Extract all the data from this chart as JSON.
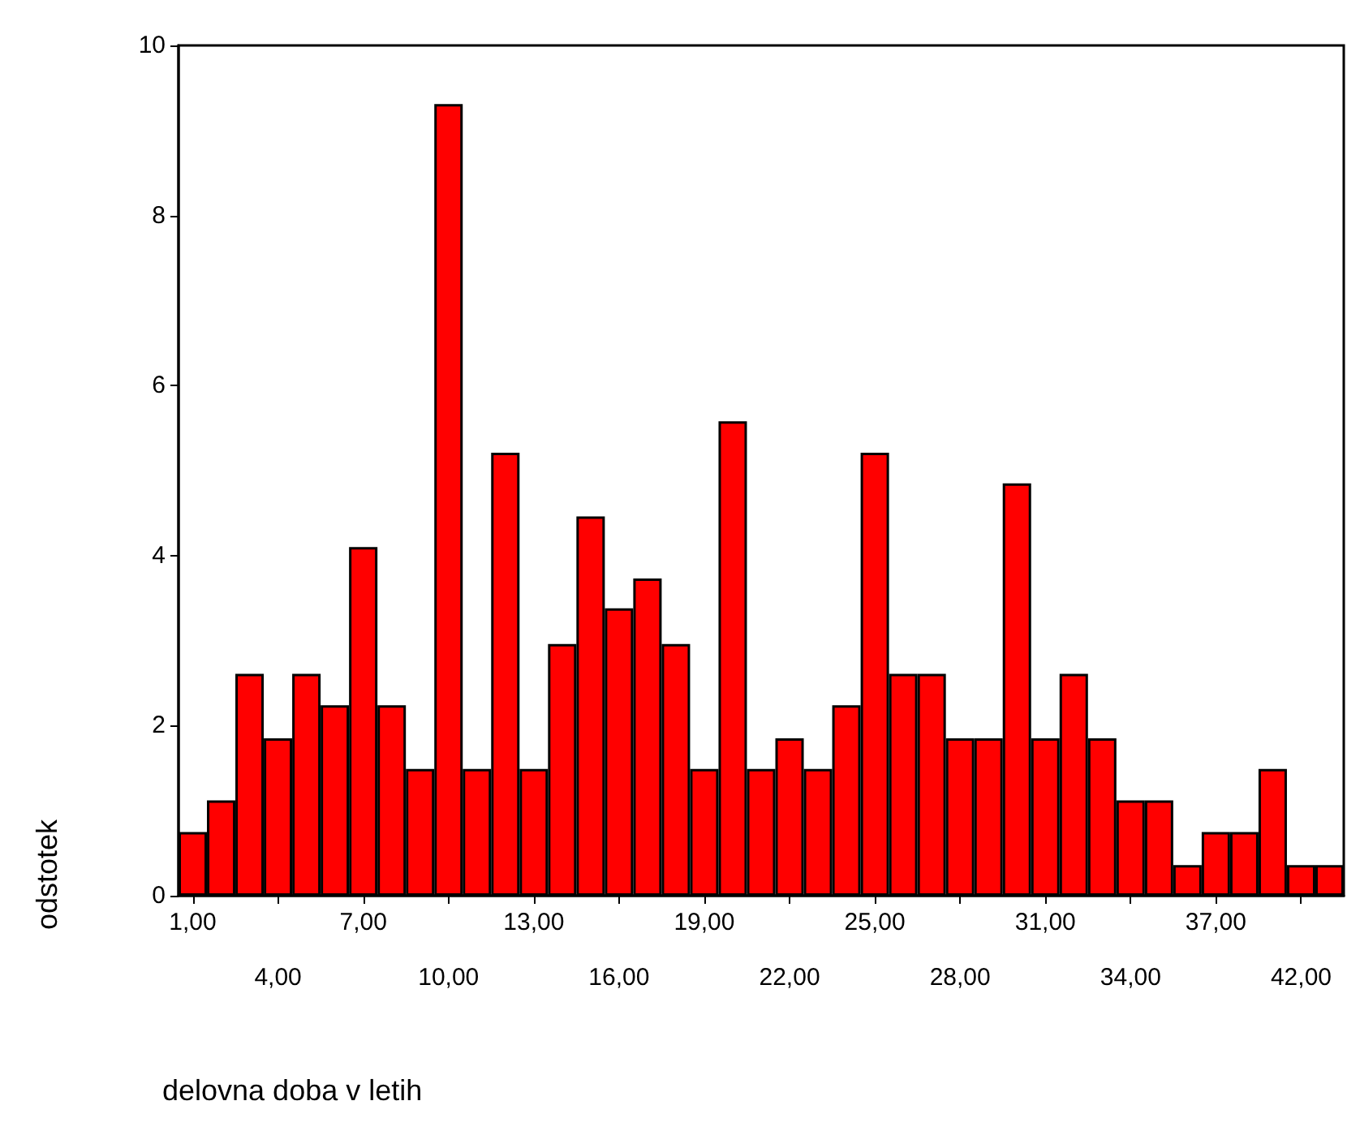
{
  "chart_data": {
    "type": "bar",
    "xlabel": "delovna doba v letih",
    "ylabel": "odstotek",
    "categories": [
      "1,00",
      null,
      null,
      "4,00",
      null,
      null,
      "7,00",
      null,
      null,
      "10,00",
      null,
      null,
      "13,00",
      null,
      null,
      "16,00",
      null,
      null,
      "19,00",
      null,
      null,
      "22,00",
      null,
      null,
      "25,00",
      null,
      null,
      "28,00",
      null,
      null,
      "31,00",
      null,
      null,
      "34,00",
      null,
      null,
      "37,00",
      null,
      null,
      "42,00",
      null
    ],
    "values": [
      0.75,
      1.12,
      2.61,
      1.85,
      2.61,
      2.24,
      4.1,
      2.24,
      1.49,
      9.31,
      1.49,
      5.21,
      1.49,
      2.96,
      4.46,
      3.38,
      3.73,
      2.96,
      1.49,
      5.58,
      1.49,
      1.85,
      1.49,
      2.24,
      5.21,
      2.61,
      2.61,
      1.85,
      1.85,
      4.85,
      1.85,
      2.61,
      1.85,
      1.12,
      1.12,
      0.36,
      0.75,
      0.75,
      1.49,
      0.36,
      0.36
    ],
    "color": "#ff0000",
    "ylim": [
      0,
      10
    ],
    "yticks": [
      0,
      2,
      4,
      6,
      8,
      10
    ],
    "grid": false
  }
}
